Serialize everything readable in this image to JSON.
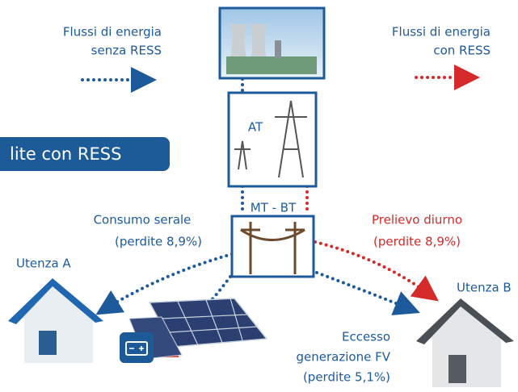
{
  "legend": {
    "without": {
      "lines": [
        "Flussi di energia",
        "senza RESS"
      ]
    },
    "with": {
      "lines": [
        "Flussi di energia",
        "con RESS"
      ]
    }
  },
  "banner": "lite con RESS",
  "nodes": {
    "high_voltage": "AT",
    "medium_low_voltage": "MT - BT",
    "user_a": "Utenza A",
    "user_b": "Utenza B"
  },
  "flows": {
    "evening": {
      "lines": [
        "Consumo serale",
        "(perdite 8,9%)"
      ]
    },
    "daytime": {
      "lines": [
        "Prelievo diurno",
        "(perdite 8,9%)"
      ]
    },
    "excess": {
      "lines": [
        "Eccesso",
        "generazione FV",
        "(perdite 5,1%)"
      ]
    }
  }
}
